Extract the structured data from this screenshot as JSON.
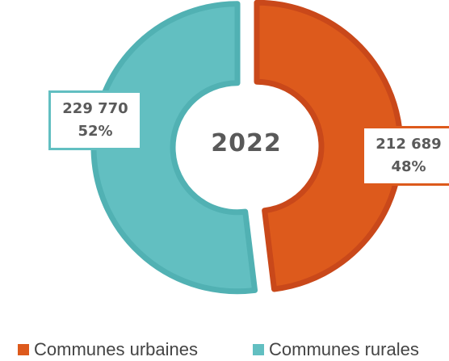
{
  "chart_data": {
    "type": "pie",
    "style": "donut",
    "center_text": "2022",
    "slices": [
      {
        "name": "Communes urbaines",
        "value": 212689,
        "value_label": "212 689",
        "percent_label": "48%",
        "color": "#dd5a1c",
        "edge_color": "#c9481a"
      },
      {
        "name": "Communes rurales",
        "value": 229770,
        "value_label": "229 770",
        "percent_label": "52%",
        "color": "#62bfc1",
        "edge_color": "#51b1b3"
      }
    ],
    "legend_position": "bottom"
  }
}
